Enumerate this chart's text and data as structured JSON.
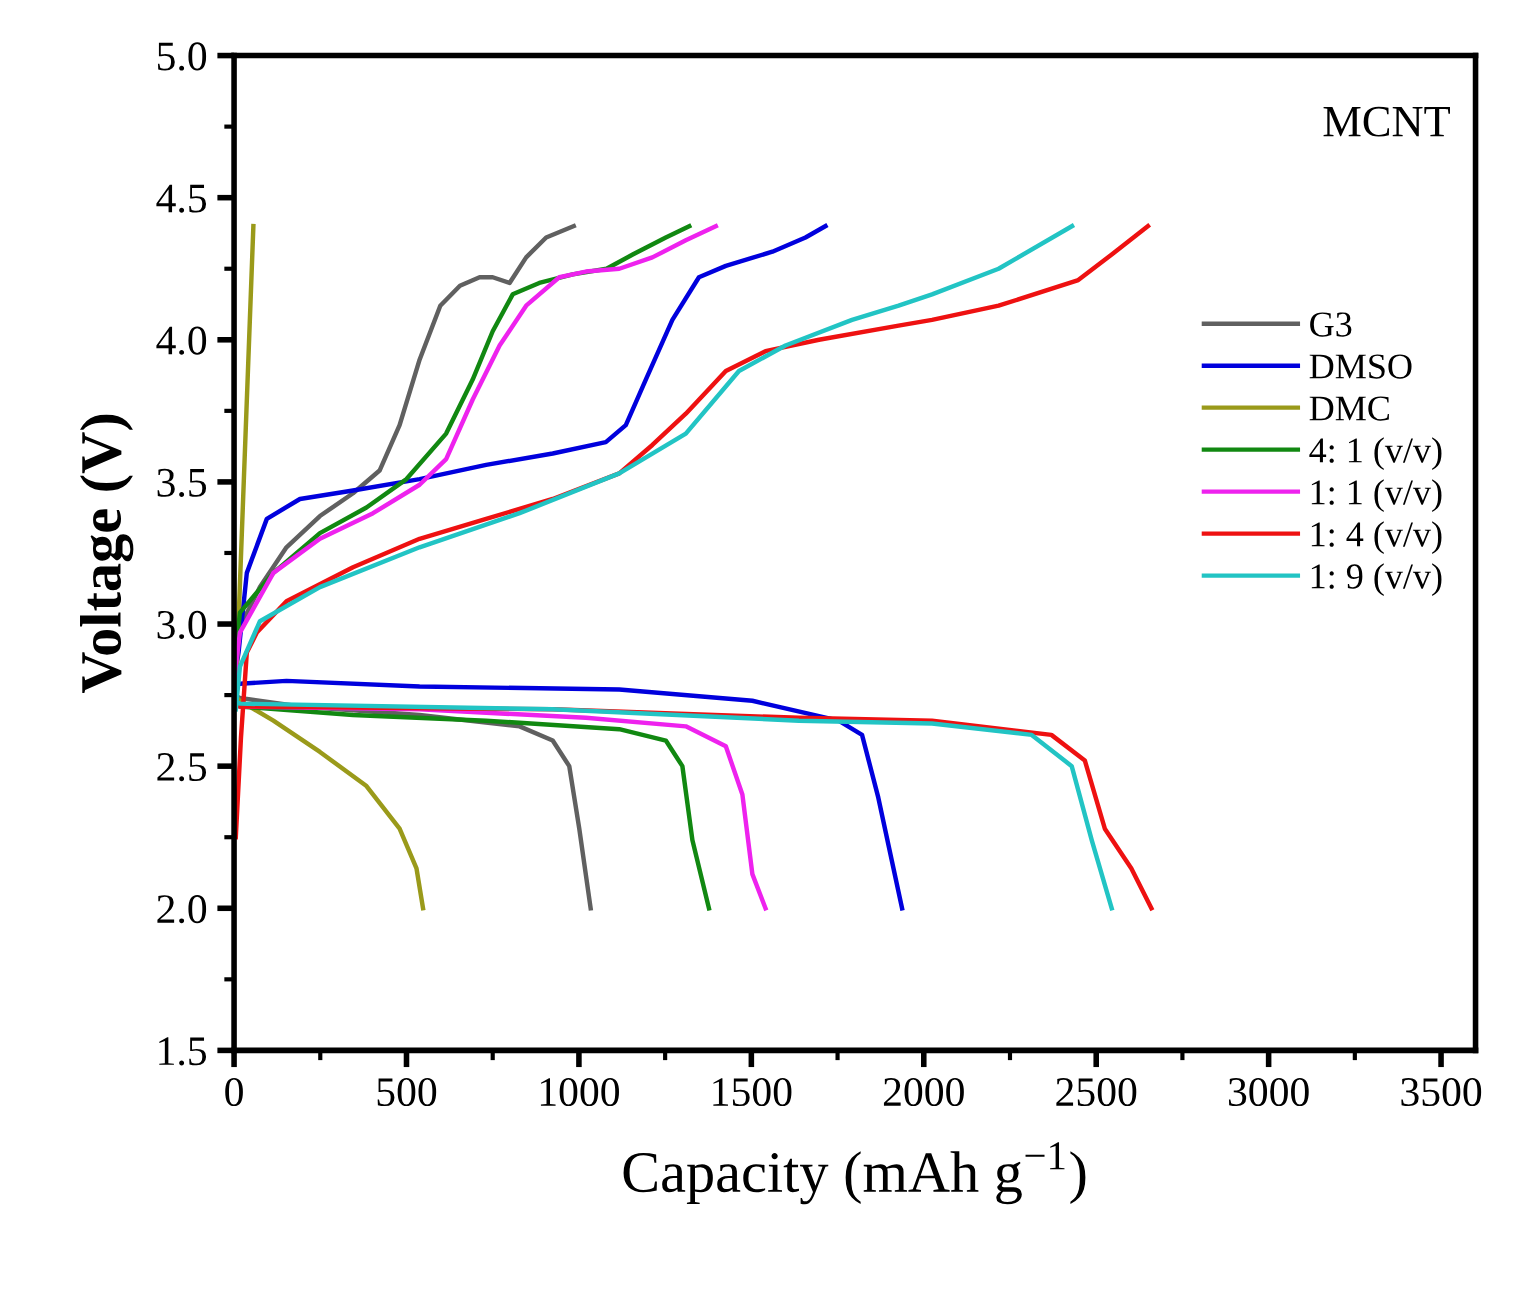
{
  "chart_data": {
    "type": "line",
    "xlabel": "Capacity (mAh g$^{−1}$)",
    "ylabel": "Voltage (V)",
    "annotations": [
      "MCNT"
    ],
    "xlim": [
      0,
      3600
    ],
    "xticks": [
      0,
      500,
      1000,
      1500,
      2000,
      2500,
      3000,
      3500
    ],
    "ylim": [
      1.5,
      5.0
    ],
    "yticks": [
      1.5,
      {
        "value": 2,
        "label": "2.0"
      },
      2.5,
      {
        "value": 3,
        "label": "3.0"
      },
      3.5,
      {
        "value": 4,
        "label": "4.0"
      },
      4.5,
      {
        "value": 5,
        "label": "5.0"
      }
    ],
    "grid": false,
    "legend": "right",
    "line_style": "solid",
    "marker": "none",
    "series": [
      {
        "name": "G3",
        "color": "#606060",
        "x": [
          0,
          17,
          191,
          538,
          828,
          924,
          972,
          1001,
          1034,
          null,
          0,
          17,
          75,
          152,
          249,
          345,
          422,
          480,
          538,
          598,
          655,
          712,
          750,
          799,
          847,
          905,
          985
        ],
        "values": [
          2.75,
          2.74,
          2.71,
          2.68,
          2.64,
          2.59,
          2.5,
          2.28,
          2.0,
          null,
          2.9,
          2.99,
          3.13,
          3.27,
          3.38,
          3.46,
          3.54,
          3.7,
          3.93,
          4.12,
          4.19,
          4.22,
          4.22,
          4.2,
          4.29,
          4.36,
          4.4
        ]
      },
      {
        "name": "DMSO",
        "color": "#0000dd",
        "x": [
          0,
          17,
          152,
          538,
          1117,
          1503,
          1753,
          1821,
          1868,
          1937,
          null,
          0,
          13,
          37,
          95,
          191,
          345,
          538,
          731,
          924,
          1078,
          1136,
          1194,
          1271,
          1348,
          1426,
          1561,
          1657,
          1715
        ],
        "values": [
          2.79,
          2.79,
          2.8,
          2.78,
          2.77,
          2.73,
          2.66,
          2.61,
          2.39,
          2.0,
          null,
          2.8,
          2.9,
          3.18,
          3.37,
          3.44,
          3.47,
          3.51,
          3.56,
          3.6,
          3.64,
          3.7,
          3.86,
          4.07,
          4.22,
          4.26,
          4.31,
          4.36,
          4.4
        ]
      },
      {
        "name": "DMC",
        "color": "#9a9a1a",
        "x": [
          0,
          17,
          114,
          249,
          384,
          480,
          529,
          548,
          null,
          0,
          8,
          56
        ],
        "values": [
          2.75,
          2.73,
          2.66,
          2.55,
          2.43,
          2.28,
          2.14,
          2.0,
          null,
          2.7,
          2.85,
          4.4
        ]
      },
      {
        "name": "4: 1 (v/v)",
        "color": "#118811",
        "x": [
          0,
          17,
          345,
          731,
          1117,
          1252,
          1300,
          1329,
          1377,
          null,
          0,
          17,
          114,
          249,
          384,
          500,
          615,
          692,
          750,
          808,
          885,
          982,
          1080,
          1156,
          1252,
          1320
        ],
        "values": [
          2.72,
          2.71,
          2.68,
          2.66,
          2.63,
          2.59,
          2.5,
          2.24,
          2.0,
          null,
          2.85,
          3.04,
          3.18,
          3.32,
          3.41,
          3.51,
          3.67,
          3.86,
          4.03,
          4.16,
          4.2,
          4.23,
          4.25,
          4.3,
          4.36,
          4.4
        ]
      },
      {
        "name": "1: 1 (v/v)",
        "color": "#ee22ee",
        "x": [
          0,
          17,
          538,
          1020,
          1310,
          1426,
          1474,
          1503,
          1541,
          null,
          0,
          17,
          114,
          249,
          403,
          538,
          615,
          692,
          770,
          847,
          943,
          1020,
          1117,
          1213,
          1310,
          1397
        ],
        "values": [
          2.72,
          2.71,
          2.7,
          2.67,
          2.64,
          2.57,
          2.4,
          2.12,
          2.0,
          null,
          2.8,
          2.97,
          3.18,
          3.3,
          3.39,
          3.49,
          3.58,
          3.79,
          3.98,
          4.12,
          4.22,
          4.24,
          4.25,
          4.29,
          4.35,
          4.4
        ]
      },
      {
        "name": "1: 4 (v/v)",
        "color": "#ee1111",
        "x": [
          0,
          17,
          924,
          1638,
          2024,
          2370,
          2467,
          2525,
          2602,
          2660,
          null,
          5,
          20,
          37,
          66,
          152,
          345,
          538,
          731,
          924,
          1117,
          1213,
          1310,
          1426,
          1541,
          1696,
          1927,
          2024,
          2217,
          2448,
          2545,
          2650
        ],
        "values": [
          2.72,
          2.71,
          2.7,
          2.67,
          2.66,
          2.61,
          2.52,
          2.28,
          2.14,
          2.0,
          null,
          2.25,
          2.6,
          2.9,
          2.97,
          3.08,
          3.2,
          3.3,
          3.37,
          3.44,
          3.53,
          3.63,
          3.74,
          3.89,
          3.96,
          4.0,
          4.05,
          4.07,
          4.12,
          4.21,
          4.3,
          4.4
        ]
      },
      {
        "name": "1: 9 (v/v)",
        "color": "#22c4c4",
        "x": [
          0,
          17,
          924,
          1638,
          2024,
          2313,
          2429,
          2487,
          2545,
          null,
          5,
          17,
          75,
          249,
          538,
          828,
          1117,
          1310,
          1464,
          1599,
          1792,
          1927,
          2024,
          2217,
          2430
        ],
        "values": [
          2.73,
          2.72,
          2.7,
          2.66,
          2.65,
          2.61,
          2.5,
          2.24,
          2.0,
          null,
          2.7,
          2.85,
          3.01,
          3.13,
          3.27,
          3.39,
          3.53,
          3.67,
          3.89,
          3.98,
          4.07,
          4.12,
          4.16,
          4.25,
          4.4
        ]
      }
    ]
  }
}
